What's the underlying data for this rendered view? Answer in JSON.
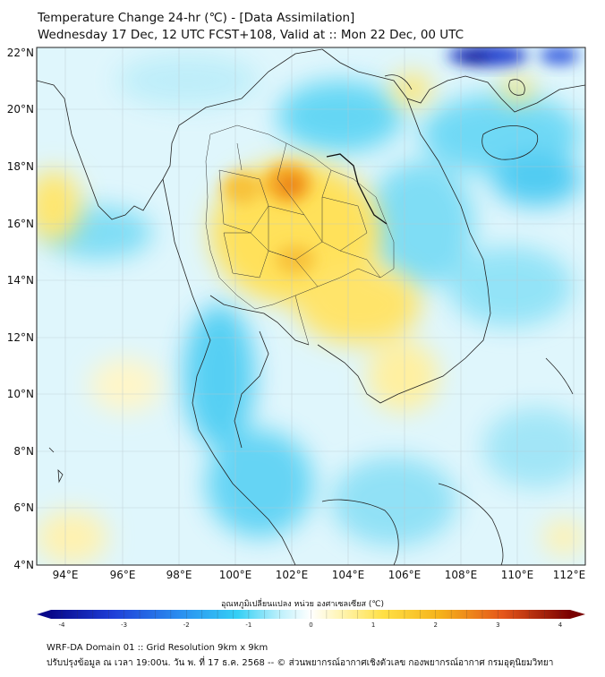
{
  "title_line1": "Temperature Change 24-hr (℃) - [Data Assimilation]",
  "title_line2": "Wednesday 17 Dec, 12 UTC FCST+108, Valid at :: Mon 22 Dec, 00 UTC",
  "lat_labels": [
    "22°N",
    "20°N",
    "18°N",
    "16°N",
    "14°N",
    "12°N",
    "10°N",
    "8°N",
    "6°N",
    "4°N"
  ],
  "lon_labels": [
    "94°E",
    "96°E",
    "98°E",
    "100°E",
    "102°E",
    "104°E",
    "106°E",
    "108°E",
    "110°E",
    "112°E"
  ],
  "colorbar": {
    "title": "อุณหภูมิเปลี่ยนแปลง หน่วย องศาเซลเซียส (℃)",
    "ticks": [
      "-4",
      "-3",
      "-2",
      "-1",
      "0",
      "1",
      "2",
      "3",
      "4"
    ],
    "min": -4,
    "max": 4
  },
  "footer_line1": "WRF-DA Domain 01 :: Grid Resolution 9km x 9km",
  "footer_line2": "ปรับปรุงข้อมูล ณ เวลา 19:00น. วัน พ. ที่ 17 ธ.ค. 2568 -- © ส่วนพยากรณ์อากาศเชิงตัวเลข กองพยากรณ์อากาศ กรมอุตุนิยมวิทยา",
  "colors": {
    "cold_dark": "#1a1aa0",
    "cold": "#2fd0f2",
    "neutral": "#ffffff",
    "warm": "#ffd11a",
    "hot": "#e8731a",
    "hot_dark": "#800000"
  }
}
